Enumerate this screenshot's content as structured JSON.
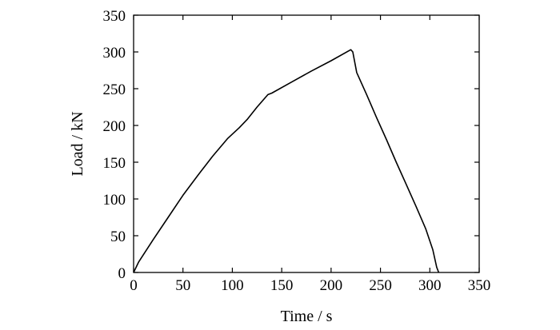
{
  "chart_data": {
    "type": "line",
    "xlabel": "Time / s",
    "ylabel": "Load / kN",
    "xlim": [
      0,
      350
    ],
    "ylim": [
      0,
      350
    ],
    "xticks": [
      0,
      50,
      100,
      150,
      200,
      250,
      300,
      350
    ],
    "yticks": [
      0,
      50,
      100,
      150,
      200,
      250,
      300,
      350
    ],
    "grid": false,
    "legend": "none",
    "series": [
      {
        "color": "#000000",
        "points": [
          [
            0,
            0
          ],
          [
            5,
            14
          ],
          [
            20,
            45
          ],
          [
            35,
            75
          ],
          [
            50,
            105
          ],
          [
            65,
            132
          ],
          [
            80,
            158
          ],
          [
            95,
            182
          ],
          [
            107,
            197
          ],
          [
            115,
            208
          ],
          [
            125,
            225
          ],
          [
            136,
            242
          ],
          [
            140,
            244
          ],
          [
            160,
            259
          ],
          [
            180,
            274
          ],
          [
            200,
            288
          ],
          [
            220,
            303
          ],
          [
            222,
            300
          ],
          [
            226,
            272
          ],
          [
            236,
            242
          ],
          [
            246,
            211
          ],
          [
            256,
            181
          ],
          [
            266,
            150
          ],
          [
            276,
            120
          ],
          [
            286,
            90
          ],
          [
            296,
            59
          ],
          [
            303,
            31
          ],
          [
            307,
            7
          ],
          [
            309,
            0
          ]
        ]
      }
    ]
  }
}
